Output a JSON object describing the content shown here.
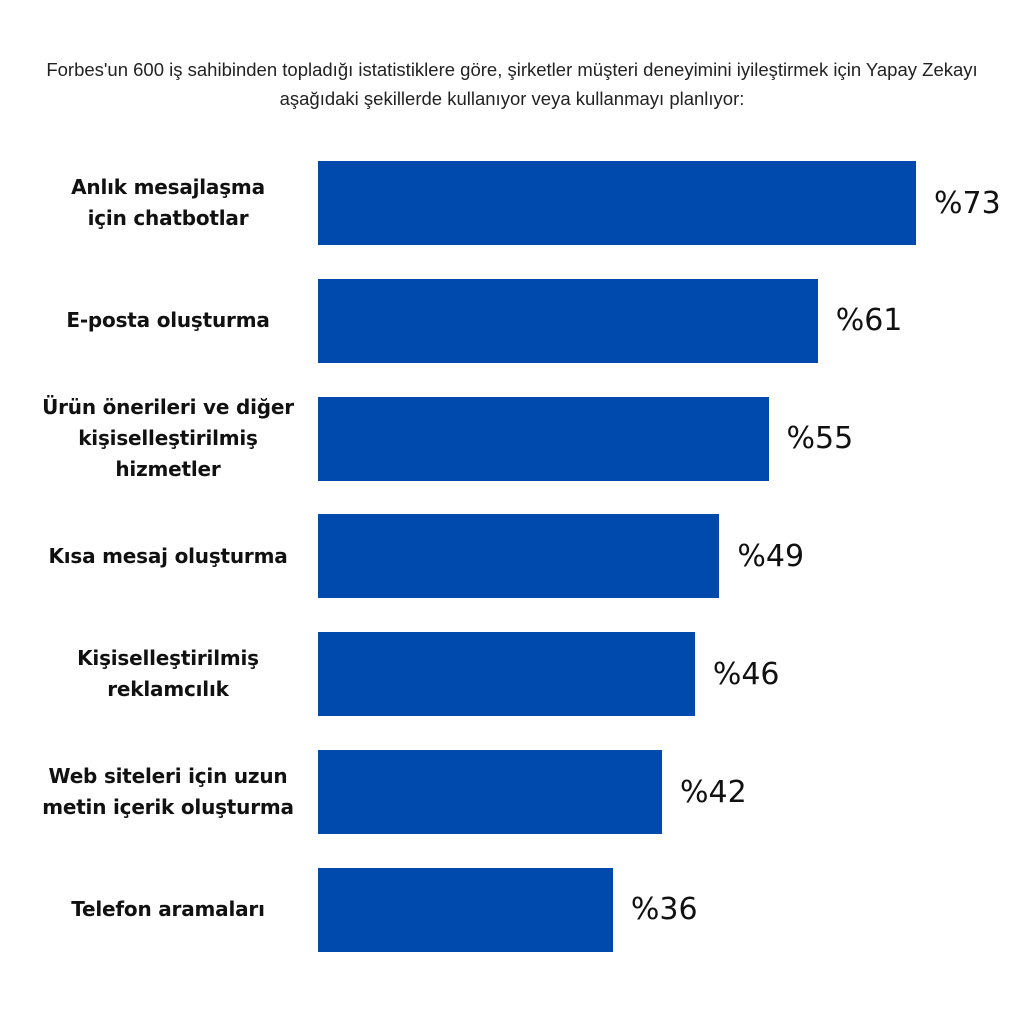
{
  "chart_data": {
    "type": "bar",
    "orientation": "horizontal",
    "title": "Forbes'un 600 iş sahibinden topladığı istatistiklere göre, şirketler müşteri deneyimini iyileştirmek için Yapay Zekayı aşağıdaki şekillerde kullanıyor veya kullanmayı planlıyor:",
    "categories": [
      "Anlık mesajlaşma\niçin chatbotlar",
      "E-posta oluşturma",
      "Ürün önerileri ve diğer\nkişiselleştirilmiş\nhizmetler",
      "Kısa mesaj oluşturma",
      "Kişiselleştirilmiş\nreklamcılık",
      "Web siteleri için uzun\nmetin içerik oluşturma",
      "Telefon aramaları"
    ],
    "values": [
      73,
      61,
      55,
      49,
      46,
      42,
      36
    ],
    "value_labels": [
      "%73",
      "%61",
      "%55",
      "%49",
      "%46",
      "%42",
      "%36"
    ],
    "unit": "%",
    "xlabel": "",
    "ylabel": "",
    "xlim": [
      0,
      73
    ],
    "grid": false,
    "bar_color": "#004AAD"
  }
}
